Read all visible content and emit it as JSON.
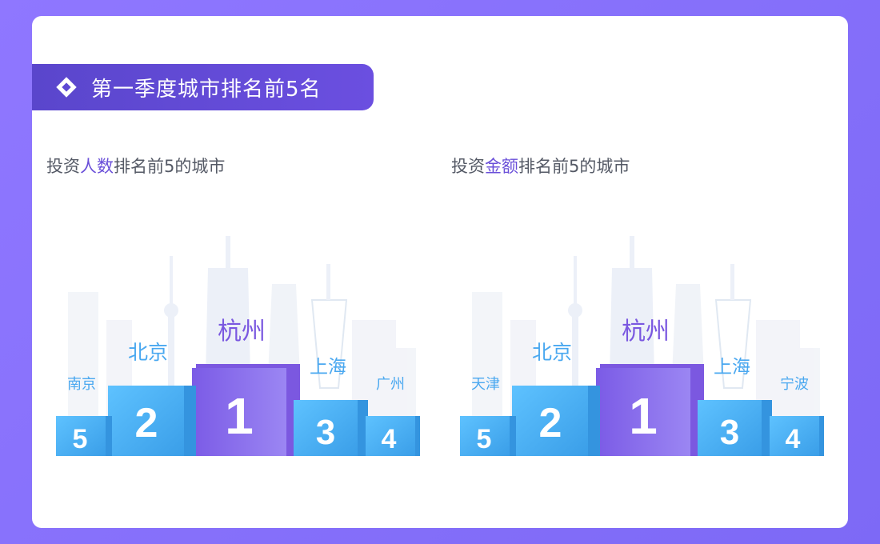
{
  "header": {
    "title": "第一季度城市排名前5名",
    "icon": "diamond-icon"
  },
  "panels": [
    {
      "title_pre": "投资",
      "title_highlight": "人数",
      "title_post": "排名前5的城市",
      "ranks": [
        {
          "rank": "1",
          "city": "杭州"
        },
        {
          "rank": "2",
          "city": "北京"
        },
        {
          "rank": "3",
          "city": "上海"
        },
        {
          "rank": "4",
          "city": "广州"
        },
        {
          "rank": "5",
          "city": "南京"
        }
      ]
    },
    {
      "title_pre": "投资",
      "title_highlight": "金额",
      "title_post": "排名前5的城市",
      "ranks": [
        {
          "rank": "1",
          "city": "杭州"
        },
        {
          "rank": "2",
          "city": "北京"
        },
        {
          "rank": "3",
          "city": "上海"
        },
        {
          "rank": "4",
          "city": "宁波"
        },
        {
          "rank": "5",
          "city": "天津"
        }
      ]
    }
  ],
  "colors": {
    "accent": "#6a4fd9",
    "podium_blue": "#4db3f5",
    "podium_purple": "#8a6cf0"
  }
}
